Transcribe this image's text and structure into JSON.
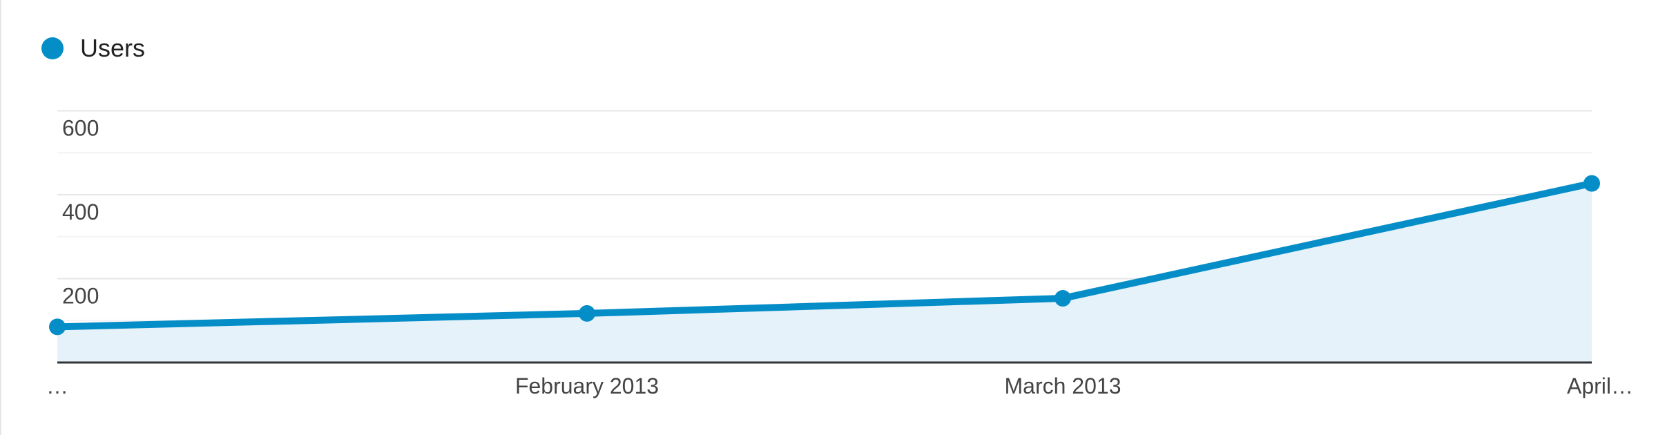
{
  "colors": {
    "series": "#058dc7",
    "area": "#e5f2f9",
    "grid": "#e6e6e6",
    "grid_minor": "#f4f4f4",
    "axis": "#333333"
  },
  "chart_data": {
    "type": "area",
    "x": [
      "…",
      "February 2013",
      "March 2013",
      "April…"
    ],
    "series": [
      {
        "name": "Users",
        "values": [
          85,
          117,
          153,
          427
        ]
      }
    ],
    "y_ticks": [
      "200",
      "400",
      "600"
    ],
    "ylim": [
      0,
      600
    ],
    "grid": true,
    "legend_position": "top-left"
  }
}
